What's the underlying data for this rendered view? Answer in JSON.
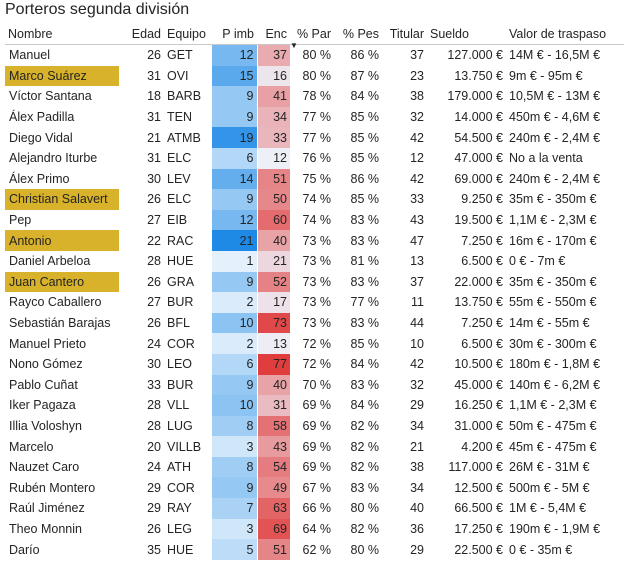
{
  "title": "Porteros segunda división",
  "colors": {
    "highlight": "#d7b22a",
    "pimb_max": "#1f8ae6",
    "pimb_min": "#ffffff",
    "enc_max": "#e03d3d",
    "enc_min": "#eef0f8"
  },
  "columns": [
    "Nombre",
    "Edad",
    "Equipo",
    "P imb",
    "Enc",
    "% Par",
    "% Pes",
    "Titular",
    "Sueldo",
    "Valor de traspaso"
  ],
  "sorted_column": "% Par",
  "sort_icon": "sort-descending-icon",
  "rows": [
    {
      "nombre": "Manuel",
      "edad": "26",
      "equipo": "GET",
      "pimb": "12",
      "enc": "37",
      "par": "80 %",
      "pes": "86 %",
      "titular": "37",
      "sueldo": "127.000 €",
      "valor": "14M € - 16,5M €",
      "hl": false
    },
    {
      "nombre": "Marco Suárez",
      "edad": "31",
      "equipo": "OVI",
      "pimb": "15",
      "enc": "16",
      "par": "80 %",
      "pes": "87 %",
      "titular": "23",
      "sueldo": "13.750 €",
      "valor": "9m € - 95m €",
      "hl": true
    },
    {
      "nombre": "Víctor Santana",
      "edad": "18",
      "equipo": "BARB",
      "pimb": "9",
      "enc": "41",
      "par": "78 %",
      "pes": "84 %",
      "titular": "38",
      "sueldo": "179.000 €",
      "valor": "10,5M € - 13M €",
      "hl": false
    },
    {
      "nombre": "Álex Padilla",
      "edad": "31",
      "equipo": "TEN",
      "pimb": "9",
      "enc": "34",
      "par": "77 %",
      "pes": "85 %",
      "titular": "32",
      "sueldo": "14.000 €",
      "valor": "450m € - 4,6M €",
      "hl": false
    },
    {
      "nombre": "Diego Vidal",
      "edad": "21",
      "equipo": "ATMB",
      "pimb": "19",
      "enc": "33",
      "par": "77 %",
      "pes": "85 %",
      "titular": "42",
      "sueldo": "54.500 €",
      "valor": "240m € - 2,4M €",
      "hl": false
    },
    {
      "nombre": "Alejandro Iturbe",
      "edad": "31",
      "equipo": "ELC",
      "pimb": "6",
      "enc": "12",
      "par": "76 %",
      "pes": "85 %",
      "titular": "12",
      "sueldo": "47.000 €",
      "valor": "No a la venta",
      "hl": false
    },
    {
      "nombre": "Álex Primo",
      "edad": "30",
      "equipo": "LEV",
      "pimb": "14",
      "enc": "51",
      "par": "75 %",
      "pes": "86 %",
      "titular": "42",
      "sueldo": "69.000 €",
      "valor": "240m € - 2,4M €",
      "hl": false
    },
    {
      "nombre": "Christian Salavert",
      "edad": "26",
      "equipo": "ELC",
      "pimb": "9",
      "enc": "50",
      "par": "74 %",
      "pes": "85 %",
      "titular": "33",
      "sueldo": "9.250 €",
      "valor": "35m € - 350m €",
      "hl": true
    },
    {
      "nombre": "Pep",
      "edad": "27",
      "equipo": "EIB",
      "pimb": "12",
      "enc": "60",
      "par": "74 %",
      "pes": "83 %",
      "titular": "43",
      "sueldo": "19.500 €",
      "valor": "1,1M € - 2,3M €",
      "hl": false
    },
    {
      "nombre": "Antonio",
      "edad": "22",
      "equipo": "RAC",
      "pimb": "21",
      "enc": "40",
      "par": "73 %",
      "pes": "83 %",
      "titular": "47",
      "sueldo": "7.250 €",
      "valor": "16m € - 170m €",
      "hl": true
    },
    {
      "nombre": "Daniel Arbeloa",
      "edad": "28",
      "equipo": "HUE",
      "pimb": "1",
      "enc": "21",
      "par": "73 %",
      "pes": "81 %",
      "titular": "13",
      "sueldo": "6.500 €",
      "valor": "0 € - 7m €",
      "hl": false
    },
    {
      "nombre": "Juan Cantero",
      "edad": "26",
      "equipo": "GRA",
      "pimb": "9",
      "enc": "52",
      "par": "73 %",
      "pes": "83 %",
      "titular": "37",
      "sueldo": "22.000 €",
      "valor": "35m € - 350m €",
      "hl": true
    },
    {
      "nombre": "Rayco Caballero",
      "edad": "27",
      "equipo": "BUR",
      "pimb": "2",
      "enc": "17",
      "par": "73 %",
      "pes": "77 %",
      "titular": "11",
      "sueldo": "13.750 €",
      "valor": "55m € - 550m €",
      "hl": false
    },
    {
      "nombre": "Sebastián Barajas",
      "edad": "26",
      "equipo": "BFL",
      "pimb": "10",
      "enc": "73",
      "par": "73 %",
      "pes": "83 %",
      "titular": "44",
      "sueldo": "7.250 €",
      "valor": "14m € - 55m €",
      "hl": false
    },
    {
      "nombre": "Manuel Prieto",
      "edad": "24",
      "equipo": "COR",
      "pimb": "2",
      "enc": "13",
      "par": "72 %",
      "pes": "85 %",
      "titular": "10",
      "sueldo": "6.500 €",
      "valor": "30m € - 300m €",
      "hl": false
    },
    {
      "nombre": "Nono Gómez",
      "edad": "30",
      "equipo": "LEO",
      "pimb": "6",
      "enc": "77",
      "par": "72 %",
      "pes": "84 %",
      "titular": "42",
      "sueldo": "10.500 €",
      "valor": "180m € - 1,8M €",
      "hl": false
    },
    {
      "nombre": "Pablo Cuñat",
      "edad": "33",
      "equipo": "BUR",
      "pimb": "9",
      "enc": "40",
      "par": "70 %",
      "pes": "83 %",
      "titular": "32",
      "sueldo": "45.000 €",
      "valor": "140m € - 6,2M €",
      "hl": false
    },
    {
      "nombre": "Iker Pagaza",
      "edad": "28",
      "equipo": "VLL",
      "pimb": "10",
      "enc": "31",
      "par": "69 %",
      "pes": "84 %",
      "titular": "29",
      "sueldo": "16.250 €",
      "valor": "1,1M € - 2,3M €",
      "hl": false
    },
    {
      "nombre": "Illia Voloshyn",
      "edad": "28",
      "equipo": "LUG",
      "pimb": "8",
      "enc": "58",
      "par": "69 %",
      "pes": "82 %",
      "titular": "34",
      "sueldo": "31.000 €",
      "valor": "50m € - 475m €",
      "hl": false
    },
    {
      "nombre": "Marcelo",
      "edad": "20",
      "equipo": "VILLB",
      "pimb": "3",
      "enc": "43",
      "par": "69 %",
      "pes": "82 %",
      "titular": "21",
      "sueldo": "4.200 €",
      "valor": "45m € - 475m €",
      "hl": false
    },
    {
      "nombre": "Nauzet Caro",
      "edad": "24",
      "equipo": "ATH",
      "pimb": "8",
      "enc": "54",
      "par": "69 %",
      "pes": "82 %",
      "titular": "38",
      "sueldo": "117.000 €",
      "valor": "26M € - 31M €",
      "hl": false
    },
    {
      "nombre": "Rubén Montero",
      "edad": "29",
      "equipo": "COR",
      "pimb": "9",
      "enc": "49",
      "par": "67 %",
      "pes": "83 %",
      "titular": "34",
      "sueldo": "12.500 €",
      "valor": "500m € - 5M €",
      "hl": false
    },
    {
      "nombre": "Raúl Jiménez",
      "edad": "29",
      "equipo": "RAY",
      "pimb": "7",
      "enc": "63",
      "par": "66 %",
      "pes": "80 %",
      "titular": "40",
      "sueldo": "66.500 €",
      "valor": "1M € - 5,4M €",
      "hl": false
    },
    {
      "nombre": "Theo Monnin",
      "edad": "26",
      "equipo": "LEG",
      "pimb": "3",
      "enc": "69",
      "par": "64 %",
      "pes": "82 %",
      "titular": "36",
      "sueldo": "17.250 €",
      "valor": "190m € - 1,9M €",
      "hl": false
    },
    {
      "nombre": "Darío",
      "edad": "35",
      "equipo": "HUE",
      "pimb": "5",
      "enc": "51",
      "par": "62 %",
      "pes": "80 %",
      "titular": "29",
      "sueldo": "22.500 €",
      "valor": "0 € - 35m €",
      "hl": false
    }
  ]
}
